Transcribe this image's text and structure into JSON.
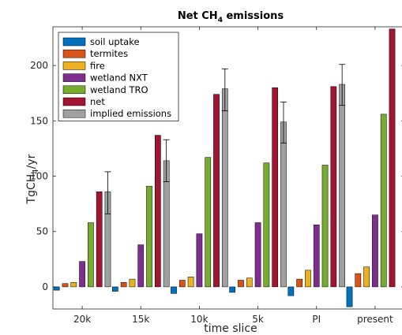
{
  "chart_data": {
    "type": "bar",
    "title_main": "Net CH",
    "title_sub": "4",
    "title_tail": " emissions",
    "xlabel": "time slice",
    "ylabel_main": "TgCH",
    "ylabel_sub": "4",
    "ylabel_tail": "/yr",
    "categories": [
      "20k",
      "15k",
      "10k",
      "5k",
      "PI",
      "present"
    ],
    "ylim": [
      -20,
      235
    ],
    "yticks": [
      0,
      50,
      100,
      150,
      200
    ],
    "grid": false,
    "legend_position": "top-left",
    "series": [
      {
        "name": "soil uptake",
        "color": "#0072bd",
        "values": [
          -3,
          -4,
          -6,
          -5,
          -8,
          -18
        ]
      },
      {
        "name": "termites",
        "color": "#d95319",
        "values": [
          3,
          4,
          6,
          6,
          7,
          12
        ]
      },
      {
        "name": "fire",
        "color": "#edb120",
        "values": [
          4,
          7,
          9,
          8,
          15,
          18
        ]
      },
      {
        "name": "wetland NXT",
        "color": "#7e2f8e",
        "values": [
          23,
          38,
          48,
          58,
          56,
          65
        ]
      },
      {
        "name": "wetland TRO",
        "color": "#77ac30",
        "values": [
          58,
          91,
          117,
          112,
          110,
          156
        ]
      },
      {
        "name": "net",
        "color": "#a2142f",
        "values": [
          86,
          137,
          174,
          180,
          181,
          233
        ]
      },
      {
        "name": "implied emissions",
        "color": "#a0a0a0",
        "values": [
          86,
          114,
          179,
          149,
          183,
          null
        ],
        "error_low": [
          66,
          95,
          159,
          130,
          164,
          null
        ],
        "error_high": [
          104,
          133,
          197,
          167,
          201,
          null
        ]
      }
    ]
  }
}
